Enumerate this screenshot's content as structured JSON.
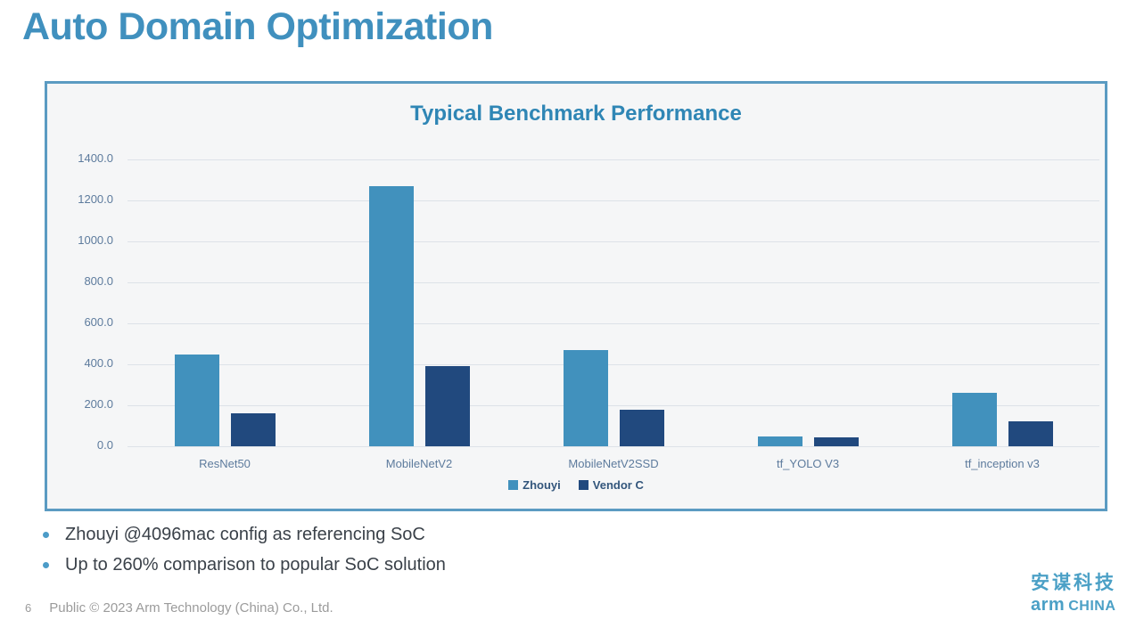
{
  "slide": {
    "title": "Auto Domain Optimization"
  },
  "chart_data": {
    "type": "bar",
    "title": "Typical Benchmark Performance",
    "categories": [
      "ResNet50",
      "MobileNetV2",
      "MobileNetV2SSD",
      "tf_YOLO V3",
      "tf_inception v3"
    ],
    "series": [
      {
        "name": "Zhouyi",
        "color": "#4191BD",
        "values": [
          450,
          1270,
          470,
          48,
          260
        ]
      },
      {
        "name": "Vendor C",
        "color": "#21497E",
        "values": [
          160,
          390,
          180,
          44,
          120
        ]
      }
    ],
    "xlabel": "",
    "ylabel": "",
    "ylim": [
      0,
      1400
    ],
    "ytick_step": 200,
    "ytick_decimals": 1,
    "grid": true,
    "legend_position": "bottom"
  },
  "bullets": {
    "items": [
      {
        "text": "Zhouyi @4096mac config as referencing SoC"
      },
      {
        "text": "Up to 260% comparison to popular SoC solution"
      }
    ]
  },
  "footer": {
    "page_number": "6",
    "copyright": "Public © 2023 Arm Technology (China) Co., Ltd."
  },
  "logo": {
    "chinese": "安谋科技",
    "latin_arm": "arm",
    "latin_china": "CHINA"
  },
  "colors": {
    "title_blue": "#4090BE",
    "chart_title_blue": "#2F86B5",
    "panel_border": "#5B9BC2",
    "panel_bg": "#F5F6F7",
    "gridline": "#DDE2E8",
    "axis_label": "#5D7B9D",
    "legend_text": "#33567C",
    "zhouyi_bar": "#4191BD",
    "vendor_c_bar": "#21497E",
    "bullet_dot": "#4C9CC8",
    "bullet_text": "#3A4149",
    "footer_gray": "#9B9B9B",
    "logo_blue": "#4BA0C6"
  }
}
